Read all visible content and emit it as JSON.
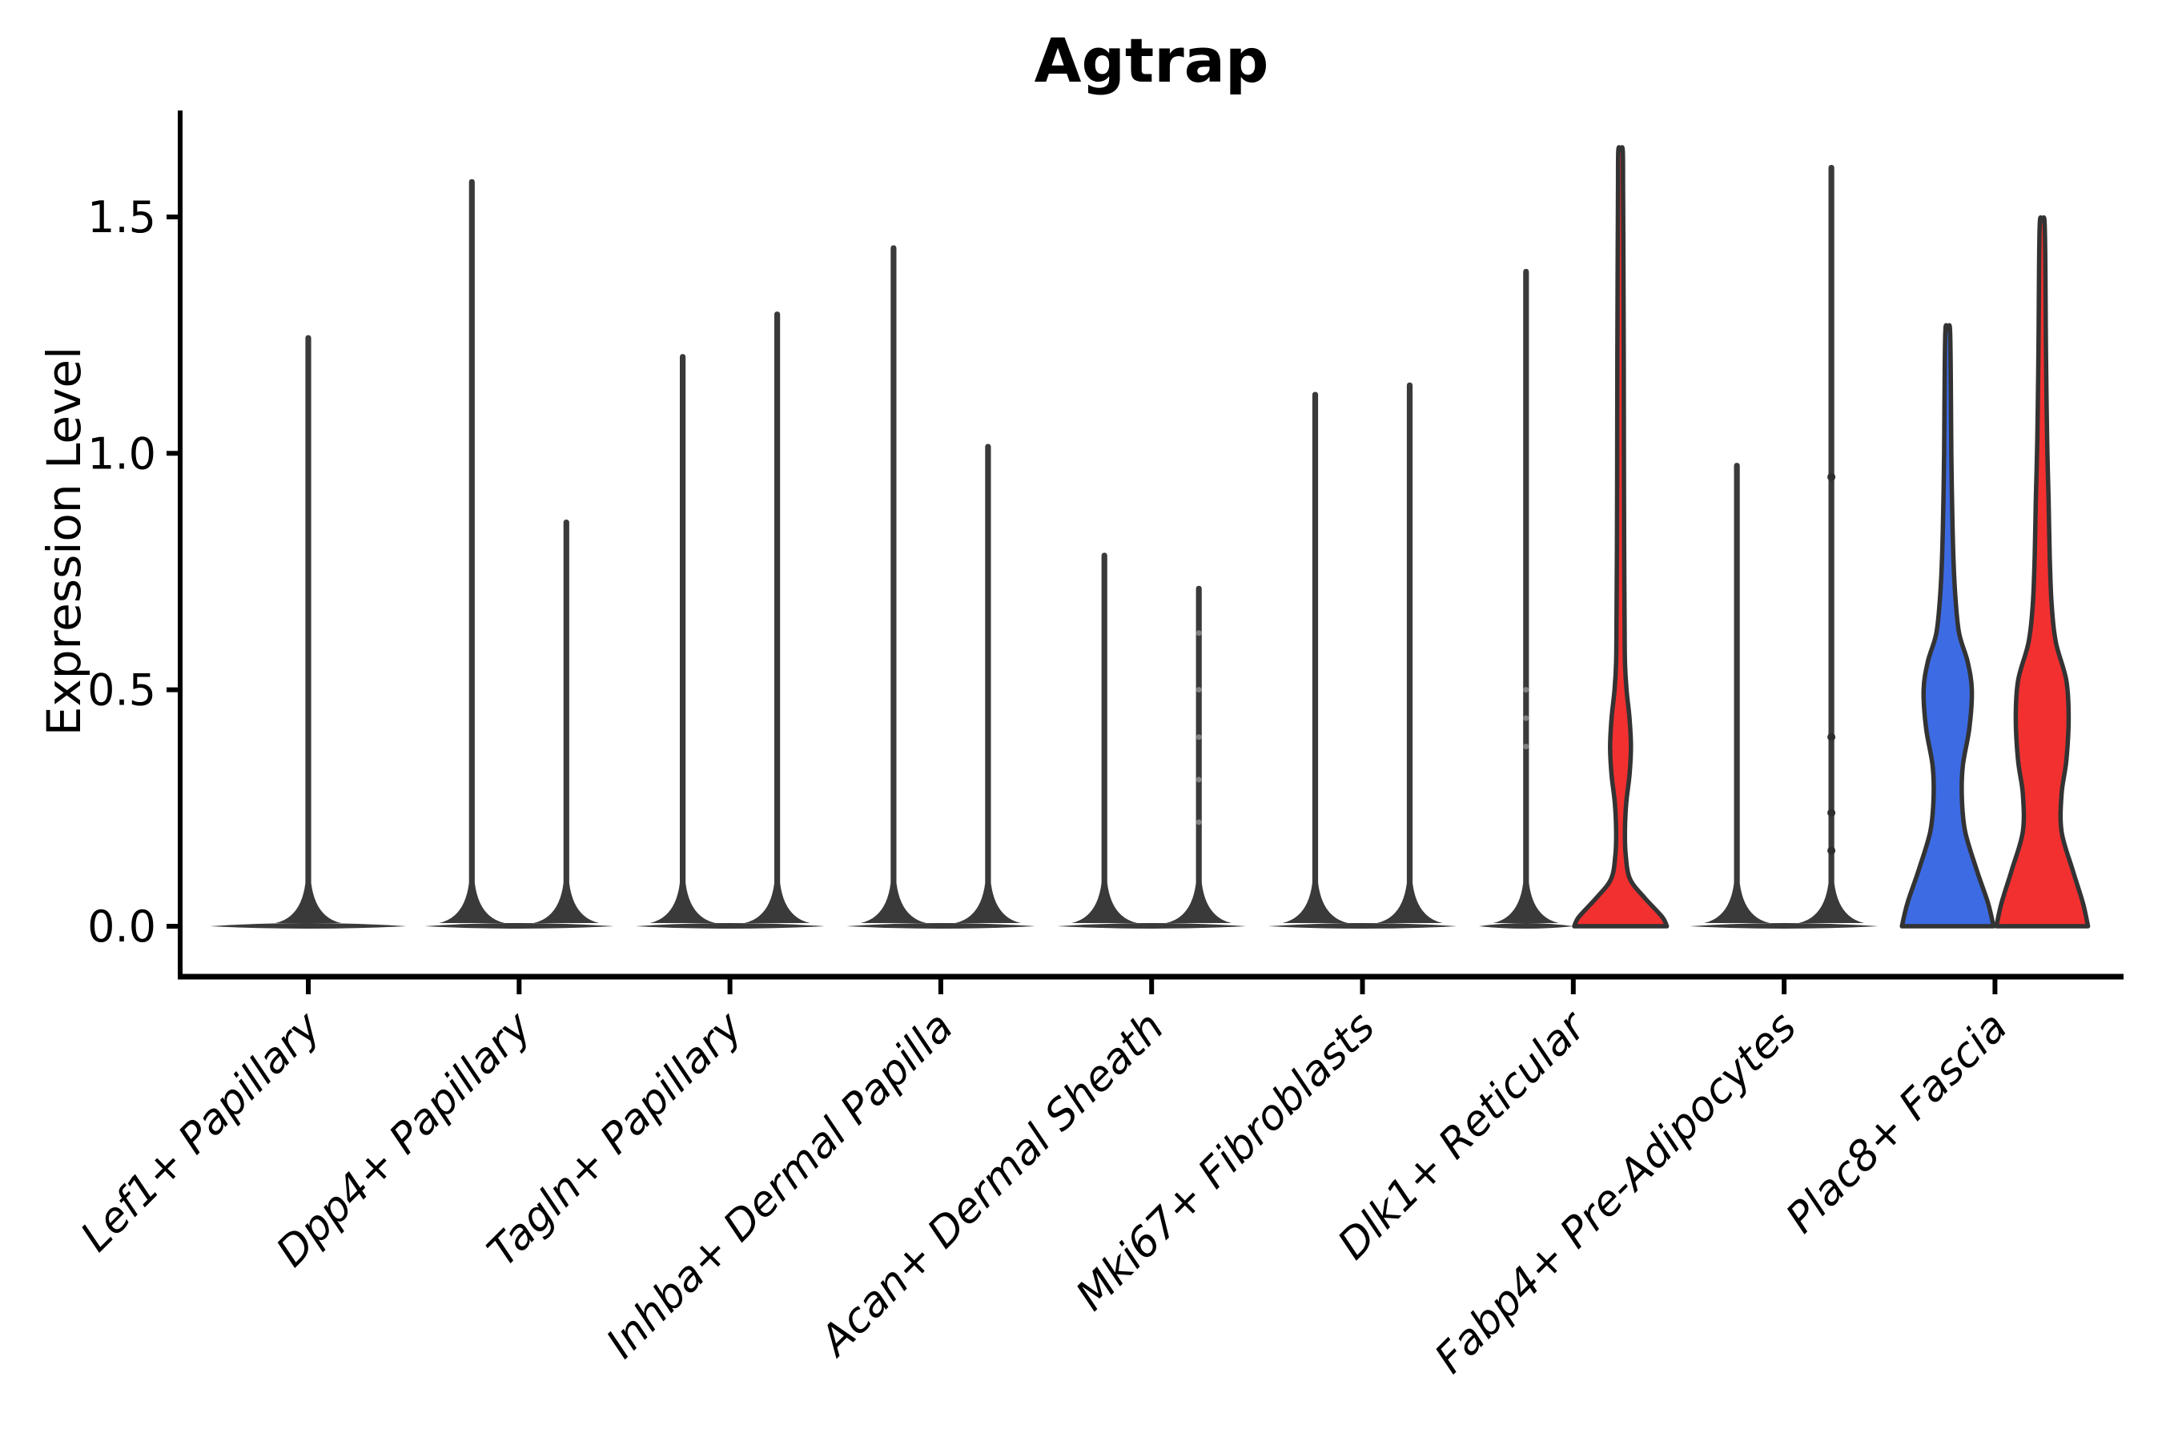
{
  "title": "Agtrap",
  "axes": {
    "ylabel": "Expression Level"
  },
  "chart_data": {
    "type": "violin",
    "title": "Agtrap",
    "ylabel": "Expression Level",
    "xlabel": "",
    "grid": false,
    "legend": null,
    "ytick_labels": [
      "0.0",
      "0.5",
      "1.0",
      "1.5"
    ],
    "ytick_values": [
      0,
      0.5,
      1.0,
      1.5
    ],
    "ylim": [
      -0.11,
      1.73
    ],
    "colors": {
      "violin_blue": "#3D6BE3",
      "violin_red": "#F23030",
      "outline": "#333333",
      "collapsed": "#3A3A3A",
      "axis": "#000000",
      "jitter": "#2E2E2E",
      "jitter_faint": "#999999"
    },
    "categories": [
      {
        "label": "Lef1+ Papillary",
        "violins": [
          {
            "position": "center",
            "style": "collapsed",
            "max": 1.25
          }
        ]
      },
      {
        "label": "Dpp4+ Papillary",
        "violins": [
          {
            "position": "left",
            "style": "collapsed",
            "max": 1.58
          },
          {
            "position": "right",
            "style": "collapsed",
            "max": 0.86
          }
        ]
      },
      {
        "label": "Tagln+ Papillary",
        "violins": [
          {
            "position": "left",
            "style": "collapsed",
            "max": 1.21
          },
          {
            "position": "right",
            "style": "collapsed",
            "max": 1.3
          }
        ]
      },
      {
        "label": "Inhba+ Dermal Papilla",
        "violins": [
          {
            "position": "left",
            "style": "collapsed",
            "max": 1.44
          },
          {
            "position": "right",
            "style": "collapsed",
            "max": 1.02
          }
        ]
      },
      {
        "label": "Acan+ Dermal Sheath",
        "violins": [
          {
            "position": "left",
            "style": "collapsed",
            "max": 0.79
          },
          {
            "position": "right",
            "style": "collapsed",
            "max": 0.72,
            "dots": [
              0.62,
              0.5,
              0.4,
              0.31,
              0.22
            ],
            "dots_faint": true
          }
        ]
      },
      {
        "label": "Mki67+ Fibroblasts",
        "violins": [
          {
            "position": "left",
            "style": "collapsed",
            "max": 1.13
          },
          {
            "position": "right",
            "style": "collapsed",
            "max": 1.15
          }
        ]
      },
      {
        "label": "Dlk1+ Reticular",
        "violins": [
          {
            "position": "left",
            "style": "collapsed",
            "max": 1.39,
            "dots": [
              0.5,
              0.44,
              0.38
            ],
            "dots_faint": true
          },
          {
            "position": "right",
            "style": "shaped",
            "fill": "red",
            "max": 1.64,
            "profile": [
              [
                0.0,
                0.98
              ],
              [
                0.02,
                0.88
              ],
              [
                0.06,
                0.51
              ],
              [
                0.1,
                0.2
              ],
              [
                0.15,
                0.11
              ],
              [
                0.2,
                0.093
              ],
              [
                0.26,
                0.12
              ],
              [
                0.32,
                0.19
              ],
              [
                0.38,
                0.22
              ],
              [
                0.44,
                0.19
              ],
              [
                0.5,
                0.127
              ],
              [
                0.56,
                0.093
              ],
              [
                0.65,
                0.085
              ],
              [
                0.8,
                0.076
              ],
              [
                1.0,
                0.071
              ],
              [
                1.2,
                0.068
              ],
              [
                1.4,
                0.061
              ],
              [
                1.55,
                0.054
              ],
              [
                1.64,
                0.047
              ]
            ]
          }
        ]
      },
      {
        "label": "Fabp4+ Pre-Adipocytes",
        "violins": [
          {
            "position": "left",
            "style": "collapsed",
            "max": 0.98
          },
          {
            "position": "right",
            "style": "collapsed",
            "max": 1.61,
            "dots": [
              0.95,
              0.4,
              0.24,
              0.16
            ],
            "dots_faint": false
          }
        ]
      },
      {
        "label": "Plac8+ Fascia",
        "violins": [
          {
            "position": "left",
            "style": "shaped",
            "fill": "blue",
            "max": 1.26,
            "profile": [
              [
                0.0,
                0.97
              ],
              [
                0.05,
                0.85
              ],
              [
                0.12,
                0.61
              ],
              [
                0.2,
                0.37
              ],
              [
                0.27,
                0.3
              ],
              [
                0.34,
                0.32
              ],
              [
                0.42,
                0.46
              ],
              [
                0.5,
                0.51
              ],
              [
                0.56,
                0.42
              ],
              [
                0.62,
                0.24
              ],
              [
                0.7,
                0.16
              ],
              [
                0.78,
                0.12
              ],
              [
                0.89,
                0.093
              ],
              [
                1.0,
                0.076
              ],
              [
                1.12,
                0.068
              ],
              [
                1.26,
                0.05
              ]
            ]
          },
          {
            "position": "right",
            "style": "shaped",
            "fill": "red",
            "max": 1.49,
            "profile": [
              [
                0.0,
                0.97
              ],
              [
                0.05,
                0.86
              ],
              [
                0.12,
                0.64
              ],
              [
                0.2,
                0.41
              ],
              [
                0.28,
                0.41
              ],
              [
                0.35,
                0.51
              ],
              [
                0.44,
                0.56
              ],
              [
                0.52,
                0.51
              ],
              [
                0.6,
                0.29
              ],
              [
                0.68,
                0.2
              ],
              [
                0.78,
                0.16
              ],
              [
                0.9,
                0.135
              ],
              [
                1.0,
                0.11
              ],
              [
                1.1,
                0.093
              ],
              [
                1.25,
                0.076
              ],
              [
                1.38,
                0.068
              ],
              [
                1.49,
                0.05
              ]
            ]
          }
        ]
      }
    ]
  }
}
